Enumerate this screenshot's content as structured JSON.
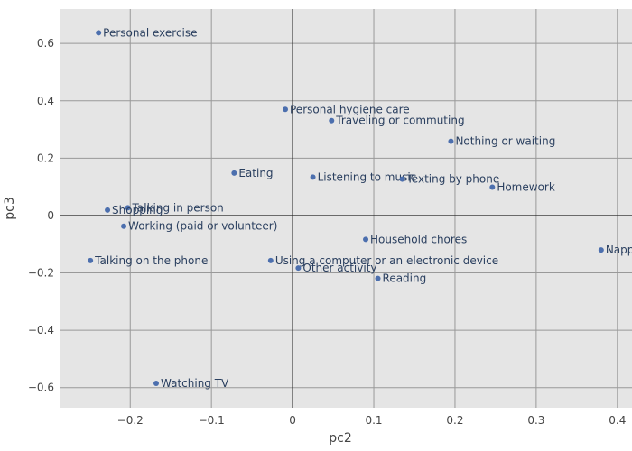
{
  "chart_data": {
    "type": "scatter",
    "xlabel": "pc2",
    "ylabel": "pc3",
    "xlim": [
      -0.287,
      0.418
    ],
    "ylim": [
      -0.67,
      0.72
    ],
    "x_ticks": [
      -0.2,
      -0.1,
      0,
      0.1,
      0.2,
      0.3,
      0.4
    ],
    "x_tick_labels": [
      "−0.2",
      "−0.1",
      "0",
      "0.1",
      "0.2",
      "0.3",
      "0.4"
    ],
    "y_ticks": [
      -0.6,
      -0.4,
      -0.2,
      0,
      0.2,
      0.4,
      0.6
    ],
    "y_tick_labels": [
      "−0.6",
      "−0.4",
      "−0.2",
      "0",
      "0.2",
      "0.4",
      "0.6"
    ],
    "grid": true,
    "colors": {
      "marker": "#4c6fae",
      "plot_bg": "#e5e5e5",
      "grid": "#999999",
      "zero_line": "#222222"
    },
    "points": [
      {
        "label": "Personal exercise",
        "x": -0.239,
        "y": 0.637
      },
      {
        "label": "Personal hygiene care",
        "x": -0.009,
        "y": 0.37
      },
      {
        "label": "Traveling or commuting",
        "x": 0.048,
        "y": 0.331
      },
      {
        "label": "Nothing or waiting",
        "x": 0.195,
        "y": 0.259
      },
      {
        "label": "Eating",
        "x": -0.072,
        "y": 0.148
      },
      {
        "label": "Listening to music",
        "x": 0.025,
        "y": 0.134
      },
      {
        "label": "Texting by phone",
        "x": 0.135,
        "y": 0.127
      },
      {
        "label": "Homework",
        "x": 0.246,
        "y": 0.099
      },
      {
        "label": "Talking in person",
        "x": -0.203,
        "y": 0.027
      },
      {
        "label": "Shopping",
        "x": -0.228,
        "y": 0.019
      },
      {
        "label": "Working (paid or volunteer)",
        "x": -0.208,
        "y": -0.037
      },
      {
        "label": "Household chores",
        "x": 0.09,
        "y": -0.083
      },
      {
        "label": "Napping",
        "x": 0.38,
        "y": -0.12
      },
      {
        "label": "Talking on the phone",
        "x": -0.249,
        "y": -0.157
      },
      {
        "label": "Using a computer or an electronic device",
        "x": -0.027,
        "y": -0.157
      },
      {
        "label": "Other activity",
        "x": 0.007,
        "y": -0.183
      },
      {
        "label": "Reading",
        "x": 0.105,
        "y": -0.219
      },
      {
        "label": "Watching TV",
        "x": -0.168,
        "y": -0.585
      }
    ]
  }
}
